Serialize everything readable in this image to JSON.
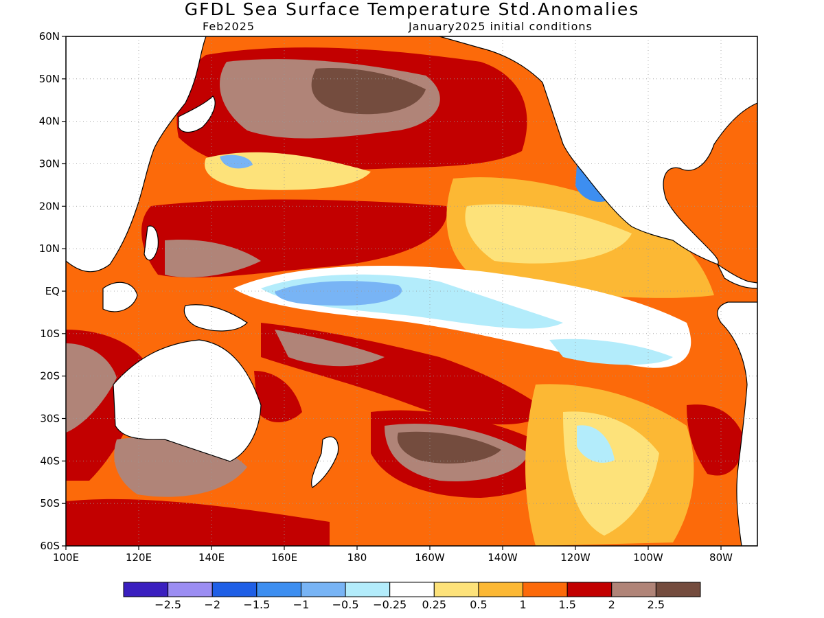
{
  "title": "GFDL Sea Surface Temperature Std.Anomalies",
  "subtitle_left": "Feb2025",
  "subtitle_right": "January2025 initial conditions",
  "map": {
    "lon_range": [
      100,
      290
    ],
    "lat_range": [
      -60,
      60
    ],
    "lat_ticks": [
      {
        "value": 60,
        "label": "60N"
      },
      {
        "value": 50,
        "label": "50N"
      },
      {
        "value": 40,
        "label": "40N"
      },
      {
        "value": 30,
        "label": "30N"
      },
      {
        "value": 20,
        "label": "20N"
      },
      {
        "value": 10,
        "label": "10N"
      },
      {
        "value": 0,
        "label": "EQ"
      },
      {
        "value": -10,
        "label": "10S"
      },
      {
        "value": -20,
        "label": "20S"
      },
      {
        "value": -30,
        "label": "30S"
      },
      {
        "value": -40,
        "label": "40S"
      },
      {
        "value": -50,
        "label": "50S"
      },
      {
        "value": -60,
        "label": "60S"
      }
    ],
    "lon_ticks": [
      {
        "value": 100,
        "label": "100E"
      },
      {
        "value": 120,
        "label": "120E"
      },
      {
        "value": 140,
        "label": "140E"
      },
      {
        "value": 160,
        "label": "160E"
      },
      {
        "value": 180,
        "label": "180"
      },
      {
        "value": 200,
        "label": "160W"
      },
      {
        "value": 220,
        "label": "140W"
      },
      {
        "value": 240,
        "label": "120W"
      },
      {
        "value": 260,
        "label": "100W"
      },
      {
        "value": 280,
        "label": "80W"
      }
    ],
    "grid": true
  },
  "colorbar": {
    "colors": [
      "#3a1fbf",
      "#9b8df2",
      "#1f5fe6",
      "#3d8ef0",
      "#78b4f5",
      "#b3ecfb",
      "#ffffff",
      "#fde27a",
      "#fcb834",
      "#fc6a0a",
      "#c20000",
      "#b08478",
      "#744c3e"
    ],
    "labels": [
      "-2.5",
      "-2",
      "-1.5",
      "-1",
      "-0.5",
      "-0.25",
      "0.25",
      "0.5",
      "1",
      "1.5",
      "2",
      "2.5"
    ]
  }
}
